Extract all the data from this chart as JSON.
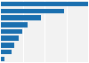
{
  "values": [
    13500,
    9800,
    6200,
    4200,
    3300,
    2700,
    2100,
    1600,
    600
  ],
  "bar_color": "#1a6faf",
  "background_color": "#ffffff",
  "plot_bg_color": "#f2f2f2",
  "grid_color": "#ffffff",
  "figsize": [
    1.0,
    0.71
  ],
  "dpi": 100,
  "bar_height": 0.72
}
